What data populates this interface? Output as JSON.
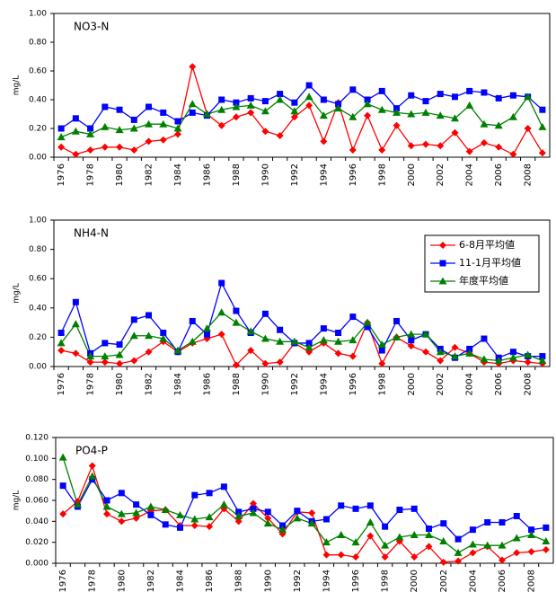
{
  "chart_data": [
    {
      "type": "line",
      "title": "NO3-N",
      "ylabel": "mg/L",
      "categories": [
        "1976",
        null,
        "1978",
        null,
        "1980",
        null,
        "1982",
        null,
        "1984",
        null,
        "1986",
        null,
        "1988",
        null,
        "1990",
        null,
        "1992",
        null,
        "1994",
        null,
        "1996",
        null,
        "1998",
        null,
        "2000",
        null,
        "2002",
        null,
        "2004",
        null,
        "2006",
        null,
        "2008",
        null
      ],
      "series": [
        {
          "color": "#ff0000",
          "marker": "diamond",
          "values": [
            0.07,
            0.02,
            0.05,
            0.07,
            0.07,
            0.05,
            0.11,
            0.12,
            0.16,
            0.63,
            0.3,
            0.22,
            0.28,
            0.31,
            0.18,
            0.15,
            0.28,
            0.36,
            0.11,
            0.38,
            0.05,
            0.29,
            0.05,
            0.22,
            0.08,
            0.09,
            0.08,
            0.17,
            0.04,
            0.1,
            0.07,
            0.02,
            0.2,
            0.03
          ]
        },
        {
          "color": "#0000ff",
          "marker": "square",
          "values": [
            0.2,
            0.27,
            0.2,
            0.35,
            0.33,
            0.26,
            0.35,
            0.31,
            0.25,
            0.31,
            0.29,
            0.4,
            0.38,
            0.41,
            0.39,
            0.44,
            0.38,
            0.5,
            0.4,
            0.37,
            0.47,
            0.4,
            0.46,
            0.34,
            0.43,
            0.39,
            0.44,
            0.42,
            0.46,
            0.45,
            0.41,
            0.43,
            0.42,
            0.33
          ]
        },
        {
          "color": "#008000",
          "marker": "triangle",
          "values": [
            0.14,
            0.18,
            0.16,
            0.21,
            0.19,
            0.2,
            0.23,
            0.23,
            0.2,
            0.37,
            0.3,
            0.33,
            0.35,
            0.36,
            0.32,
            0.4,
            0.32,
            0.42,
            0.29,
            0.34,
            0.28,
            0.37,
            0.33,
            0.31,
            0.3,
            0.31,
            0.29,
            0.27,
            0.36,
            0.23,
            0.22,
            0.28,
            0.42,
            0.21
          ]
        }
      ],
      "ylim": [
        0,
        1
      ],
      "yticks": [
        {
          "value": 0,
          "label": "0.00"
        },
        {
          "value": 0.2,
          "label": "0.20"
        },
        {
          "value": 0.4,
          "label": "0.40"
        },
        {
          "value": 0.6,
          "label": "0.60"
        },
        {
          "value": 0.8,
          "label": "0.80"
        },
        {
          "value": 1,
          "label": "1.00"
        }
      ],
      "grid": false
    },
    {
      "type": "line",
      "title": "NH4-N",
      "ylabel": "mg/L",
      "legend": "upper right",
      "categories": [
        "1976",
        null,
        "1978",
        null,
        "1980",
        null,
        "1982",
        null,
        "1984",
        null,
        "1986",
        null,
        "1988",
        null,
        "1990",
        null,
        "1992",
        null,
        "1994",
        null,
        "1996",
        null,
        "1998",
        null,
        "2000",
        null,
        "2002",
        null,
        "2004",
        null,
        "2006",
        null,
        "2008",
        null
      ],
      "series": [
        {
          "name": "6-8月平均値",
          "color": "#ff0000",
          "marker": "diamond",
          "values": [
            0.11,
            0.09,
            0.03,
            0.03,
            0.02,
            0.04,
            0.1,
            0.17,
            0.1,
            0.16,
            0.19,
            0.22,
            0.01,
            0.11,
            0.02,
            0.03,
            0.16,
            0.1,
            0.16,
            0.09,
            0.07,
            0.3,
            0.02,
            0.2,
            0.14,
            0.1,
            0.04,
            0.13,
            0.09,
            0.03,
            0.02,
            0.04,
            0.03,
            0.02
          ]
        },
        {
          "name": "11-1月平均値",
          "color": "#0000ff",
          "marker": "square",
          "values": [
            0.23,
            0.44,
            0.09,
            0.16,
            0.15,
            0.32,
            0.35,
            0.23,
            0.1,
            0.31,
            0.22,
            0.57,
            0.38,
            0.23,
            0.36,
            0.25,
            0.16,
            0.16,
            0.26,
            0.23,
            0.34,
            0.27,
            0.11,
            0.31,
            0.18,
            0.22,
            0.12,
            0.06,
            0.12,
            0.19,
            0.06,
            0.1,
            0.07,
            0.07
          ]
        },
        {
          "name": "年度平均値",
          "color": "#008000",
          "marker": "triangle",
          "values": [
            0.16,
            0.29,
            0.07,
            0.07,
            0.08,
            0.21,
            0.21,
            0.19,
            0.11,
            0.17,
            0.26,
            0.37,
            0.3,
            0.24,
            0.19,
            0.17,
            0.17,
            0.13,
            0.18,
            0.17,
            0.18,
            0.3,
            0.15,
            0.2,
            0.22,
            0.22,
            0.1,
            0.07,
            0.09,
            0.05,
            0.04,
            0.06,
            0.08,
            0.04
          ]
        }
      ],
      "ylim": [
        0,
        1
      ],
      "yticks": [
        {
          "value": 0,
          "label": "0.00"
        },
        {
          "value": 0.2,
          "label": "0.20"
        },
        {
          "value": 0.4,
          "label": "0.40"
        },
        {
          "value": 0.6,
          "label": "0.60"
        },
        {
          "value": 0.8,
          "label": "0.80"
        },
        {
          "value": 1,
          "label": "1.00"
        }
      ],
      "grid": false
    },
    {
      "type": "line",
      "title": "PO4-P",
      "ylabel": "mg/L",
      "categories": [
        "1976",
        null,
        "1978",
        null,
        "1980",
        null,
        "1982",
        null,
        "1984",
        null,
        "1986",
        null,
        "1988",
        null,
        "1990",
        null,
        "1992",
        null,
        "1994",
        null,
        "1996",
        null,
        "1998",
        null,
        "2000",
        null,
        "2002",
        null,
        "2004",
        null,
        "2006",
        null,
        "2008",
        null
      ],
      "series": [
        {
          "color": "#ff0000",
          "marker": "diamond",
          "values": [
            0.047,
            0.059,
            0.093,
            0.047,
            0.04,
            0.043,
            0.05,
            0.051,
            0.036,
            0.036,
            0.035,
            0.052,
            0.04,
            0.057,
            0.043,
            0.028,
            0.049,
            0.048,
            0.008,
            0.008,
            0.006,
            0.026,
            0.006,
            0.021,
            0.006,
            0.016,
            0.001,
            0.002,
            0.01,
            0.016,
            0.003,
            0.01,
            0.011,
            0.013
          ]
        },
        {
          "color": "#0000ff",
          "marker": "square",
          "values": [
            0.074,
            0.054,
            0.08,
            0.06,
            0.067,
            0.056,
            0.046,
            0.037,
            0.034,
            0.065,
            0.067,
            0.073,
            0.049,
            0.052,
            0.049,
            0.036,
            0.05,
            0.04,
            0.042,
            0.055,
            0.052,
            0.055,
            0.035,
            0.051,
            0.052,
            0.033,
            0.038,
            0.023,
            0.032,
            0.039,
            0.039,
            0.045,
            0.032,
            0.034
          ]
        },
        {
          "color": "#008000",
          "marker": "triangle",
          "values": [
            0.101,
            0.056,
            0.083,
            0.054,
            0.047,
            0.048,
            0.054,
            0.051,
            0.046,
            0.042,
            0.044,
            0.056,
            0.045,
            0.048,
            0.038,
            0.032,
            0.043,
            0.038,
            0.02,
            0.027,
            0.02,
            0.039,
            0.017,
            0.025,
            0.027,
            0.027,
            0.021,
            0.01,
            0.018,
            0.017,
            0.017,
            0.024,
            0.027,
            0.021
          ]
        }
      ],
      "ylim": [
        0,
        0.12
      ],
      "yticks": [
        {
          "value": 0,
          "label": "0.000"
        },
        {
          "value": 0.02,
          "label": "0.020"
        },
        {
          "value": 0.04,
          "label": "0.040"
        },
        {
          "value": 0.06,
          "label": "0.060"
        },
        {
          "value": 0.08,
          "label": "0.080"
        },
        {
          "value": 0.1,
          "label": "0.100"
        },
        {
          "value": 0.12,
          "label": "0.120"
        }
      ],
      "grid": false
    }
  ]
}
